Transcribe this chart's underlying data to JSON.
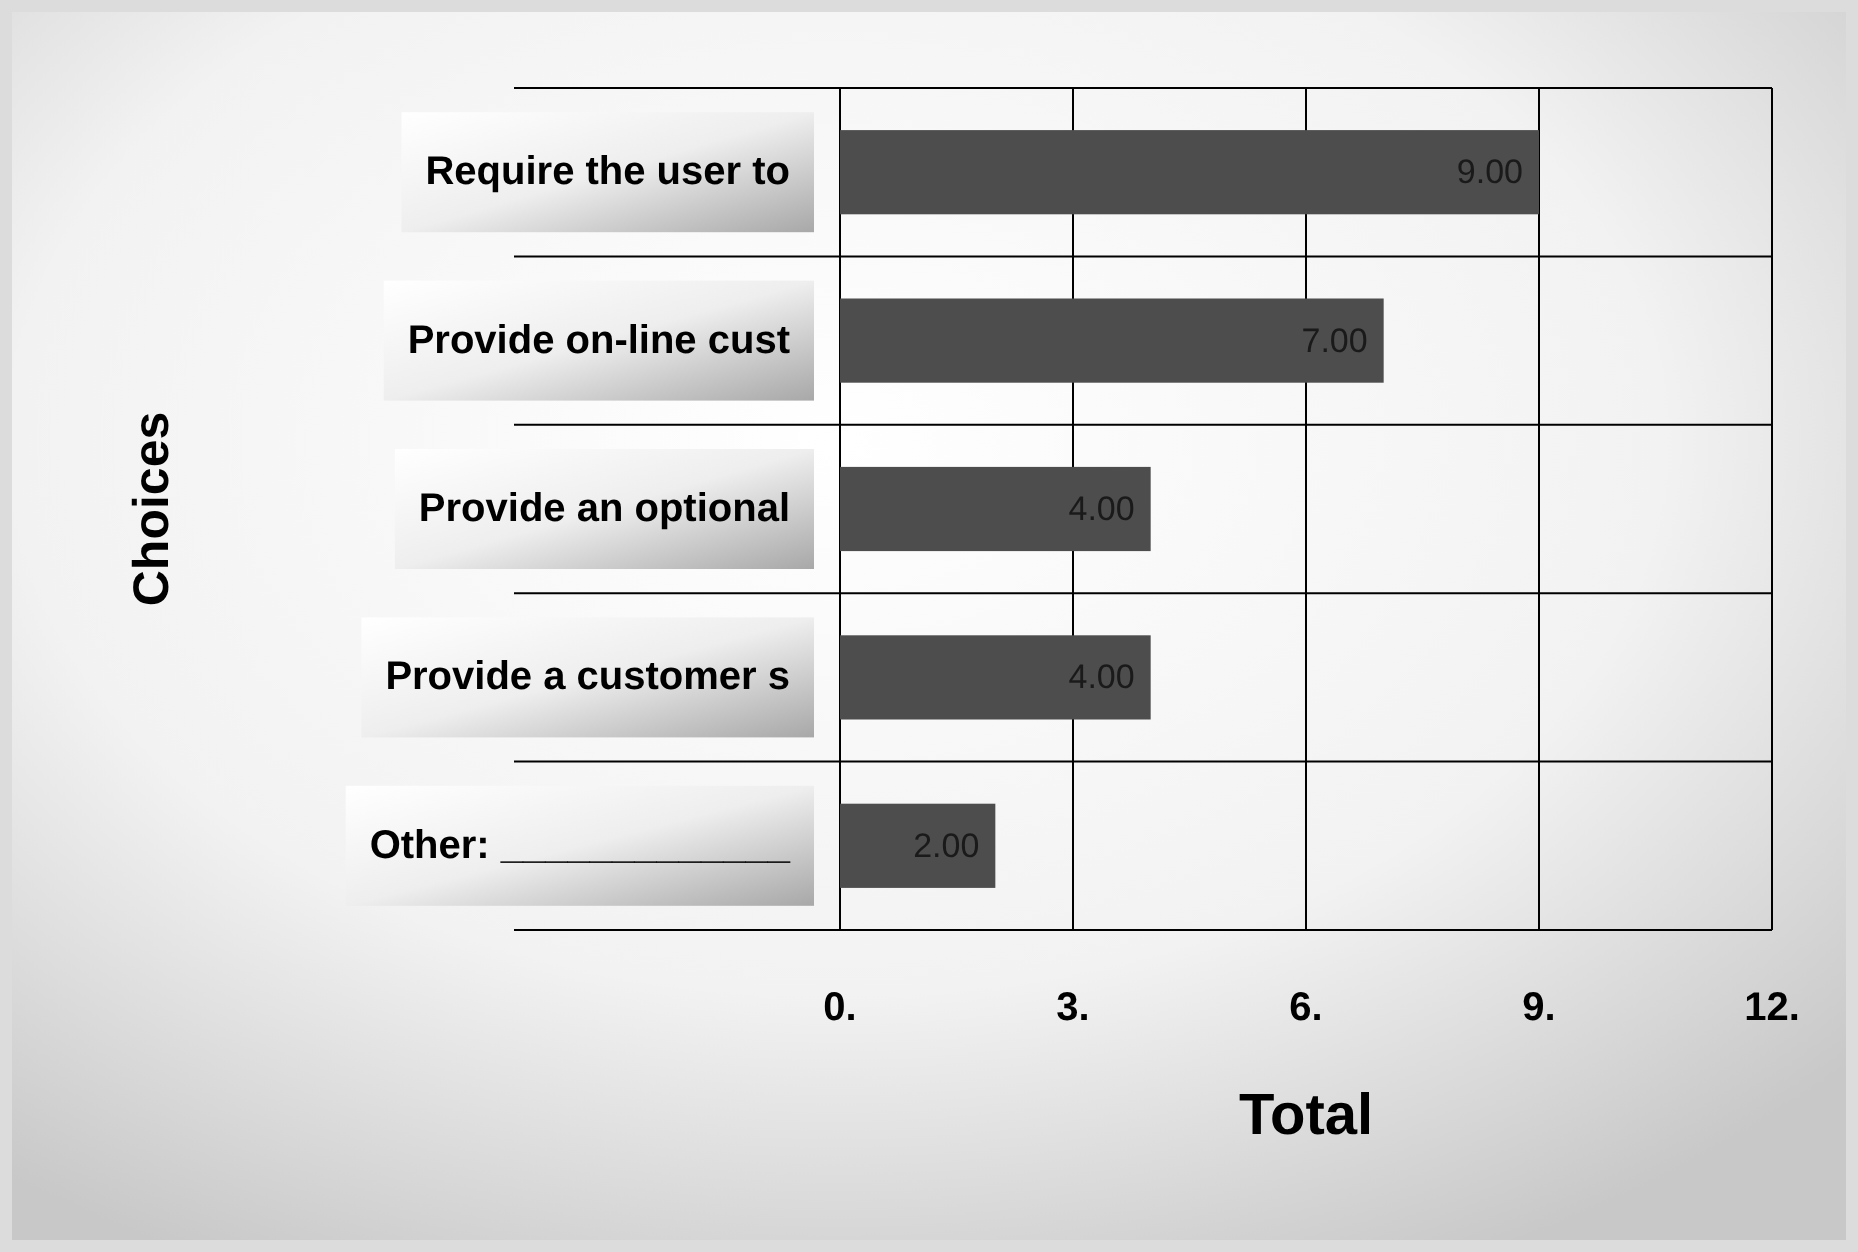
{
  "chart_data": {
    "type": "bar",
    "orientation": "horizontal",
    "xlabel": "Total",
    "ylabel": "Choices",
    "categories": [
      "Require the user to",
      "Provide on-line cust",
      "Provide an optional",
      "Provide a customer s",
      "Other: _____________"
    ],
    "values": [
      9,
      7,
      4,
      4,
      2
    ],
    "color": "#4d4d4d",
    "value_labels": [
      "9.00",
      "7.00",
      "4.00",
      "4.00",
      "2.00"
    ],
    "xlim": [
      0,
      12
    ],
    "xticks": [
      {
        "value": 0,
        "label": "0."
      },
      {
        "value": 3,
        "label": "3."
      },
      {
        "value": 6,
        "label": "6."
      },
      {
        "value": 9,
        "label": "9."
      },
      {
        "value": 12,
        "label": "12."
      }
    ],
    "grid": true
  }
}
